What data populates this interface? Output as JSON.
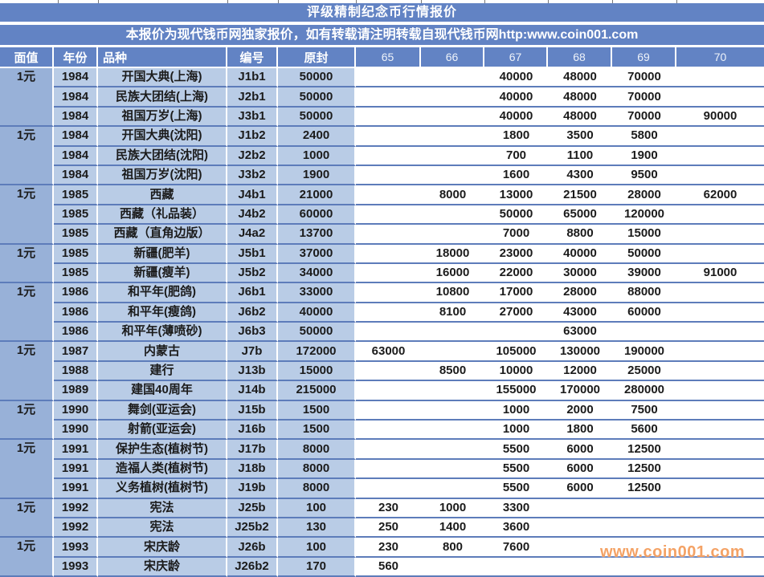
{
  "page": {
    "title": "评级精制纪念币行情报价",
    "subtitle": "本报价为现代钱币网独家报价，如有转载请注明转载自现代钱币网http:www.coin001.com",
    "watermark": "www.coin001.com"
  },
  "colors": {
    "header_blue": "#6283c4",
    "denom_column_blue": "#98b1d8",
    "row_light_blue": "#b9cce6",
    "row_separator_blue": "#5d7cba",
    "watermark_orange": "#f4a265"
  },
  "table": {
    "headers": [
      "面值",
      "年份",
      "品种",
      "编号",
      "原封",
      "65",
      "66",
      "67",
      "68",
      "69",
      "70"
    ],
    "rows": [
      {
        "denom": "1元",
        "span": 3,
        "cells": [
          "1984",
          "开国大典(上海)",
          "J1b1",
          "50000",
          "",
          "",
          "40000",
          "48000",
          "70000",
          ""
        ]
      },
      {
        "denom": null,
        "cells": [
          "1984",
          "民族大团结(上海)",
          "J2b1",
          "50000",
          "",
          "",
          "40000",
          "48000",
          "70000",
          ""
        ]
      },
      {
        "denom": null,
        "cells": [
          "1984",
          "祖国万岁(上海)",
          "J3b1",
          "50000",
          "",
          "",
          "40000",
          "48000",
          "70000",
          "90000"
        ]
      },
      {
        "denom": "1元",
        "span": 3,
        "cells": [
          "1984",
          "开国大典(沈阳)",
          "J1b2",
          "2400",
          "",
          "",
          "1800",
          "3500",
          "5800",
          ""
        ]
      },
      {
        "denom": null,
        "cells": [
          "1984",
          "民族大团结(沈阳)",
          "J2b2",
          "1000",
          "",
          "",
          "700",
          "1100",
          "1900",
          ""
        ]
      },
      {
        "denom": null,
        "cells": [
          "1984",
          "祖国万岁(沈阳)",
          "J3b2",
          "1900",
          "",
          "",
          "1600",
          "4300",
          "9500",
          ""
        ]
      },
      {
        "denom": "1元",
        "span": 3,
        "cells": [
          "1985",
          "西藏",
          "J4b1",
          "21000",
          "",
          "8000",
          "13000",
          "21500",
          "28000",
          "62000"
        ]
      },
      {
        "denom": null,
        "cells": [
          "1985",
          "西藏（礼品装）",
          "J4b2",
          "60000",
          "",
          "",
          "50000",
          "65000",
          "120000",
          ""
        ]
      },
      {
        "denom": null,
        "cells": [
          "1985",
          "西藏（直角边版）",
          "J4a2",
          "13700",
          "",
          "",
          "7000",
          "8800",
          "15000",
          ""
        ]
      },
      {
        "denom": "1元",
        "span": 2,
        "cells": [
          "1985",
          "新疆(肥羊)",
          "J5b1",
          "37000",
          "",
          "18000",
          "23000",
          "40000",
          "50000",
          ""
        ]
      },
      {
        "denom": null,
        "cells": [
          "1985",
          "新疆(瘦羊)",
          "J5b2",
          "34000",
          "",
          "16000",
          "22000",
          "30000",
          "39000",
          "91000"
        ]
      },
      {
        "denom": "1元",
        "span": 3,
        "cells": [
          "1986",
          "和平年(肥鸽)",
          "J6b1",
          "33000",
          "",
          "10800",
          "17000",
          "28000",
          "88000",
          ""
        ]
      },
      {
        "denom": null,
        "cells": [
          "1986",
          "和平年(瘦鸽)",
          "J6b2",
          "40000",
          "",
          "8100",
          "27000",
          "43000",
          "60000",
          ""
        ]
      },
      {
        "denom": null,
        "cells": [
          "1986",
          "和平年(薄喷砂)",
          "J6b3",
          "50000",
          "",
          "",
          "",
          "63000",
          "",
          ""
        ]
      },
      {
        "denom": "1元",
        "span": 3,
        "cells": [
          "1987",
          "内蒙古",
          "J7b",
          "172000",
          "63000",
          "",
          "105000",
          "130000",
          "190000",
          ""
        ]
      },
      {
        "denom": null,
        "cells": [
          "1988",
          "建行",
          "J13b",
          "15000",
          "",
          "8500",
          "10000",
          "12000",
          "25000",
          ""
        ]
      },
      {
        "denom": null,
        "cells": [
          "1989",
          "建国40周年",
          "J14b",
          "215000",
          "",
          "",
          "155000",
          "170000",
          "280000",
          ""
        ]
      },
      {
        "denom": "1元",
        "span": 2,
        "cells": [
          "1990",
          "舞剑(亚运会)",
          "J15b",
          "1500",
          "",
          "",
          "1000",
          "2000",
          "7500",
          ""
        ]
      },
      {
        "denom": null,
        "cells": [
          "1990",
          "射箭(亚运会)",
          "J16b",
          "1500",
          "",
          "",
          "1000",
          "1800",
          "5600",
          ""
        ]
      },
      {
        "denom": "1元",
        "span": 3,
        "cells": [
          "1991",
          "保护生态(植树节)",
          "J17b",
          "8000",
          "",
          "",
          "5500",
          "6000",
          "12500",
          ""
        ]
      },
      {
        "denom": null,
        "cells": [
          "1991",
          "造福人类(植树节)",
          "J18b",
          "8000",
          "",
          "",
          "5500",
          "6000",
          "12500",
          ""
        ]
      },
      {
        "denom": null,
        "cells": [
          "1991",
          "义务植树(植树节)",
          "J19b",
          "8000",
          "",
          "",
          "5500",
          "6000",
          "12500",
          ""
        ]
      },
      {
        "denom": "1元",
        "span": 2,
        "cells": [
          "1992",
          "宪法",
          "J25b",
          "100",
          "230",
          "1000",
          "3300",
          "",
          "",
          ""
        ]
      },
      {
        "denom": null,
        "cells": [
          "1992",
          "宪法",
          "J25b2",
          "130",
          "250",
          "1400",
          "3600",
          "",
          "",
          ""
        ]
      },
      {
        "denom": "1元",
        "span": 2,
        "cells": [
          "1993",
          "宋庆龄",
          "J26b",
          "100",
          "230",
          "800",
          "7600",
          "",
          "",
          ""
        ]
      },
      {
        "denom": null,
        "cells": [
          "1993",
          "宋庆龄",
          "J26b2",
          "170",
          "560",
          "",
          "",
          "",
          "",
          ""
        ]
      }
    ]
  }
}
